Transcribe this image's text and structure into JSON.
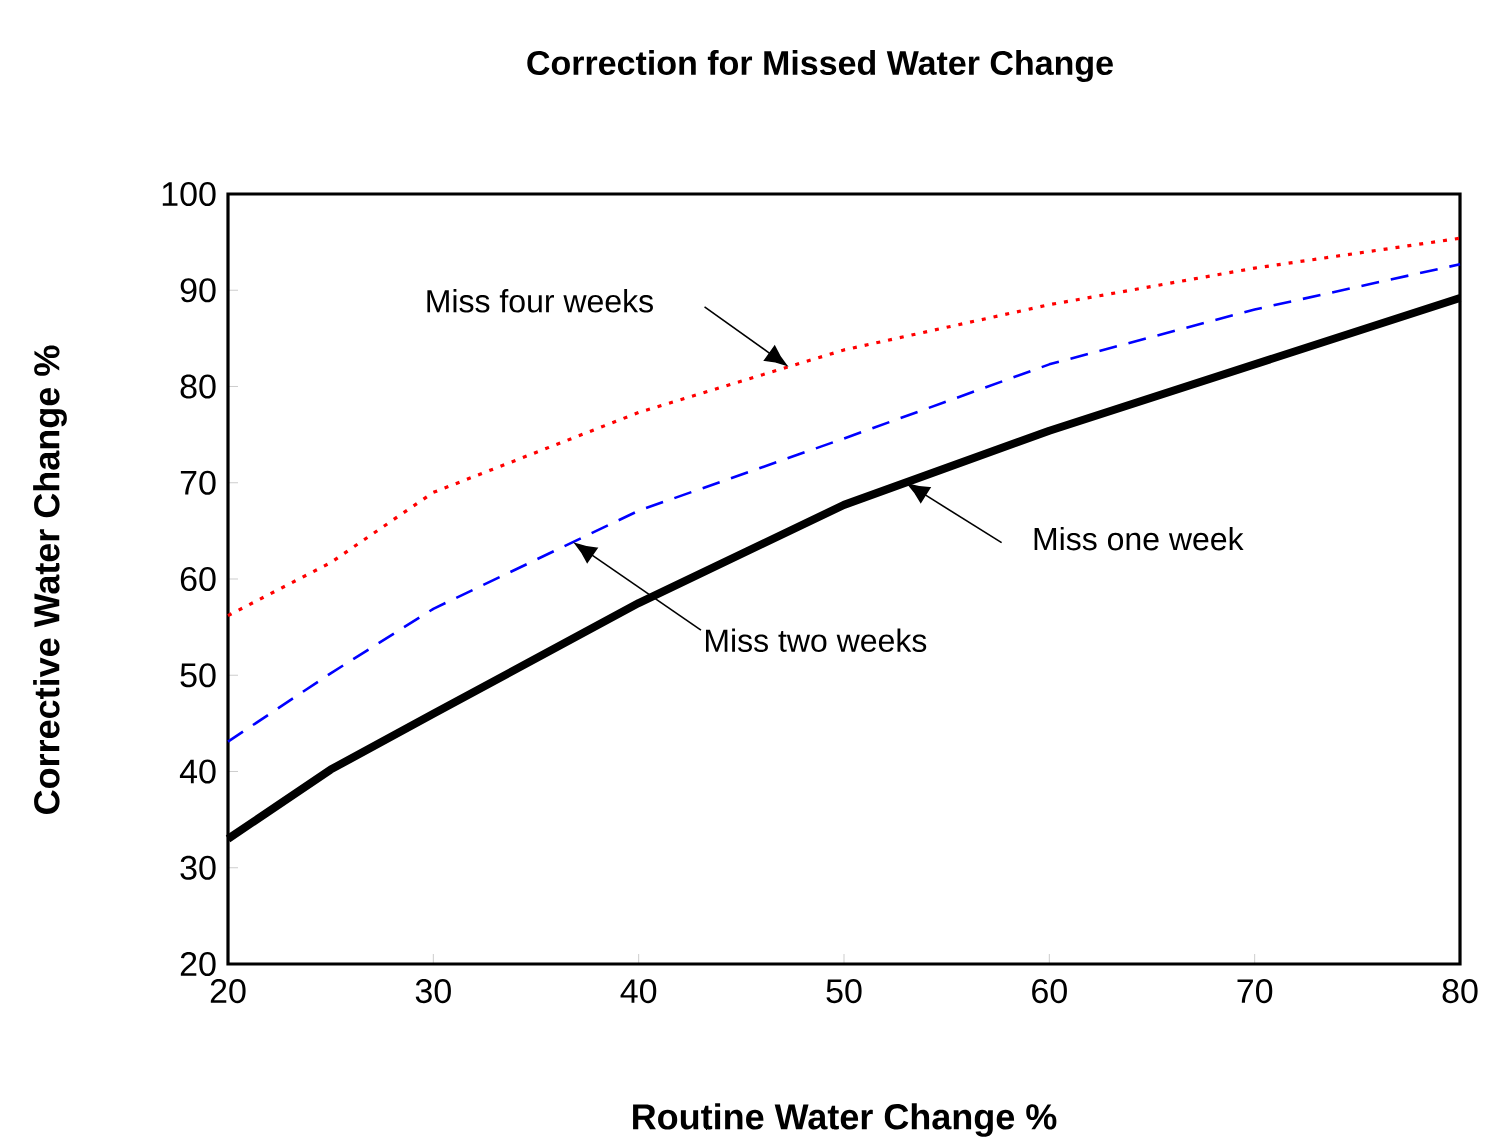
{
  "chart_data": {
    "type": "line",
    "title": "Correction for Missed Water Change",
    "xlabel": "Routine Water Change %",
    "ylabel": "Corrective Water Change %",
    "x": [
      20,
      25,
      30,
      40,
      50,
      60,
      70,
      80
    ],
    "series": [
      {
        "color": "#000000",
        "line_style": "solid",
        "values": [
          33,
          40.2,
          46,
          57.5,
          67.7,
          75.4,
          82.3,
          89.2
        ]
      },
      {
        "color": "#0000ff",
        "line_style": "dashed",
        "values": [
          43.1,
          50.2,
          56.9,
          67.1,
          74.6,
          82.3,
          88,
          92.7
        ]
      },
      {
        "color": "#ff0000",
        "line_style": "dotted",
        "values": [
          56.2,
          61.7,
          69,
          77.3,
          83.8,
          88.5,
          92.3,
          95.4
        ]
      }
    ],
    "annotations": [
      "Miss four weeks",
      "Miss two weeks",
      "Miss one week"
    ],
    "xlim": [
      20,
      80
    ],
    "ylim": [
      20,
      100
    ],
    "xticks": [
      20,
      30,
      40,
      50,
      60,
      70,
      80
    ],
    "yticks": [
      20,
      30,
      40,
      50,
      60,
      70,
      80,
      90,
      100
    ],
    "marker": "none"
  }
}
